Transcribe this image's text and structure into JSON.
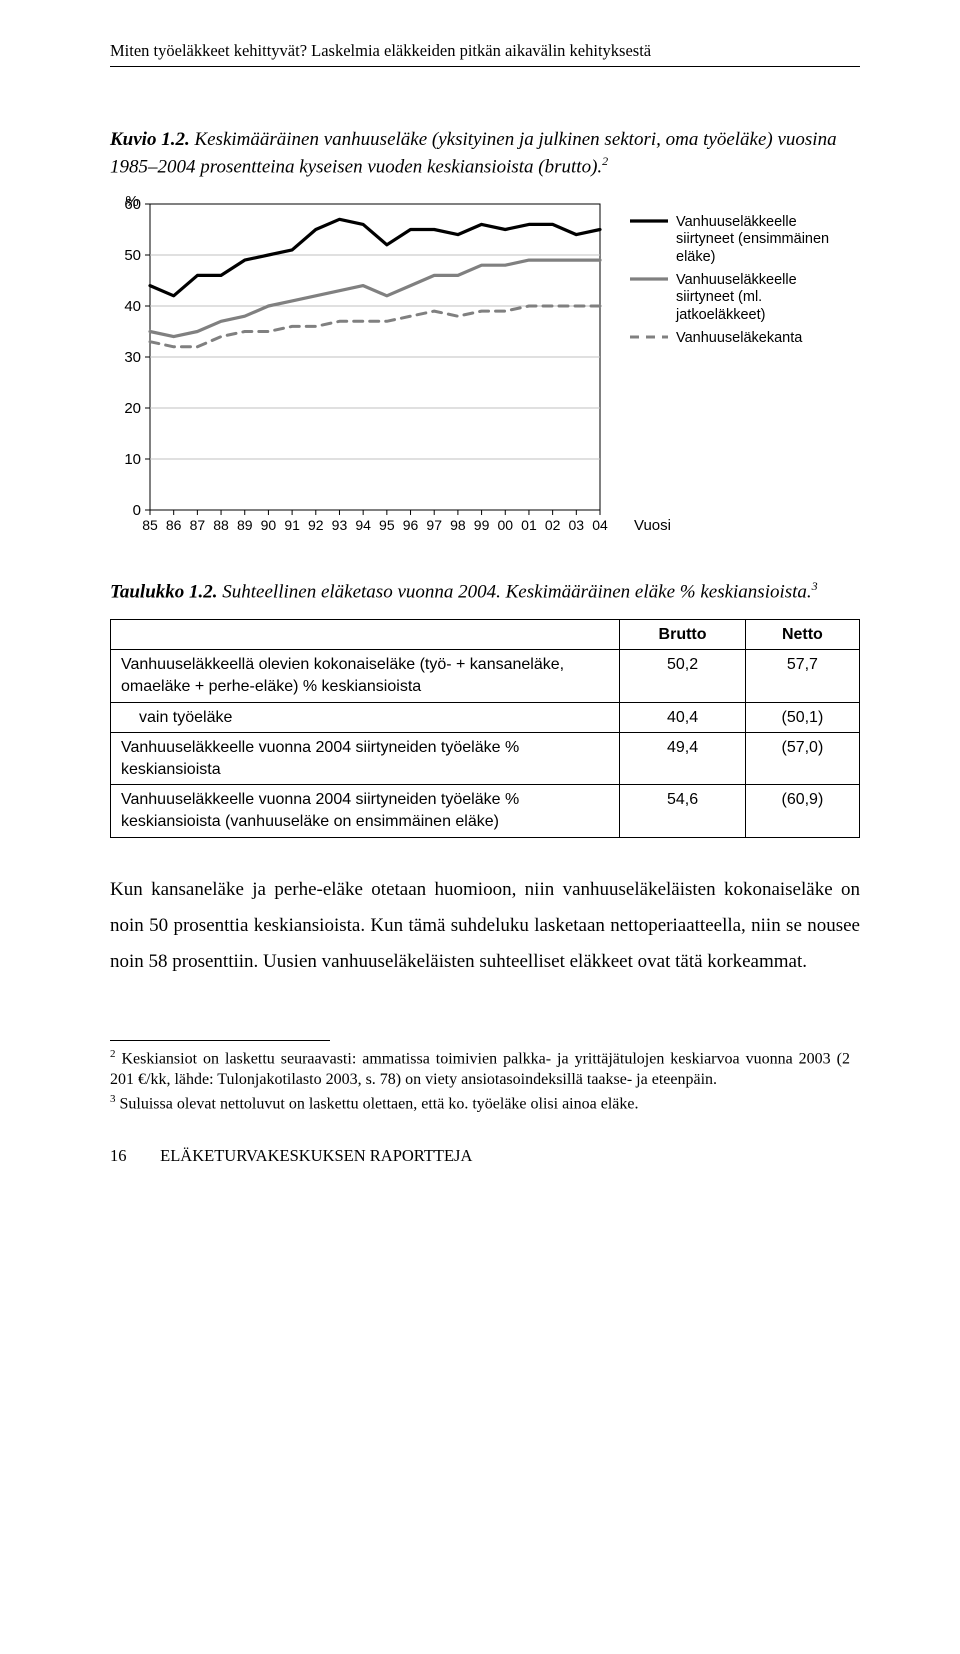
{
  "running_head": "Miten työeläkkeet kehittyvät? Laskelmia eläkkeiden pitkän aikavälin kehityksestä",
  "figure": {
    "label": "Kuvio 1.2.",
    "title": "Keskimääräinen vanhuuseläke (yksityinen ja julkinen sektori, oma työeläke) vuosina 1985–2004 prosentteina kyseisen vuoden keskiansioista (brutto).",
    "sup": "2"
  },
  "chart": {
    "type": "line",
    "y_unit": "%",
    "ylim": [
      0,
      60
    ],
    "ytick_step": 10,
    "x_labels": [
      "85",
      "86",
      "87",
      "88",
      "89",
      "90",
      "91",
      "92",
      "93",
      "94",
      "95",
      "96",
      "97",
      "98",
      "99",
      "00",
      "01",
      "02",
      "03",
      "04"
    ],
    "x_axis_label": "Vuosi",
    "background_color": "#ffffff",
    "axis_color": "#000000",
    "grid_color": "#c0c0c0",
    "label_fontsize": 15,
    "series": [
      {
        "name": "Vanhuuseläkkeelle siirtyneet (ensimmäinen eläke)",
        "color": "#000000",
        "width": 3.2,
        "dash": "",
        "values": [
          44,
          42,
          46,
          46,
          49,
          50,
          51,
          55,
          57,
          56,
          52,
          55,
          55,
          54,
          56,
          55,
          56,
          56,
          54,
          55
        ]
      },
      {
        "name": "Vanhuuseläkkeelle siirtyneet (ml. jatkoeläkkeet)",
        "color": "#808080",
        "width": 3.2,
        "dash": "",
        "values": [
          35,
          34,
          35,
          37,
          38,
          40,
          41,
          42,
          43,
          44,
          42,
          44,
          46,
          46,
          48,
          48,
          49,
          49,
          49,
          49
        ]
      },
      {
        "name": "Vanhuuseläkekanta",
        "color": "#808080",
        "width": 3.0,
        "dash": "9,7",
        "values": [
          33,
          32,
          32,
          34,
          35,
          35,
          36,
          36,
          37,
          37,
          37,
          38,
          39,
          38,
          39,
          39,
          40,
          40,
          40,
          40
        ]
      }
    ]
  },
  "table": {
    "label": "Taulukko 1.2.",
    "title": "Suhteellinen eläketaso vuonna 2004. Keskimääräinen eläke % keskiansioista.",
    "sup": "3",
    "columns": [
      "",
      "Brutto",
      "Netto"
    ],
    "rows": [
      {
        "label": "Vanhuuseläkkeellä olevien kokonaiseläke (työ- + kansaneläke, omaeläke + perhe-eläke) % keskiansioista",
        "brutto": "50,2",
        "netto": "57,7",
        "indent": false
      },
      {
        "label": "vain työeläke",
        "brutto": "40,4",
        "netto": "(50,1)",
        "indent": true
      },
      {
        "label": "Vanhuuseläkkeelle vuonna 2004 siirtyneiden työeläke % keskiansioista",
        "brutto": "49,4",
        "netto": "(57,0)",
        "indent": false
      },
      {
        "label": "Vanhuuseläkkeelle vuonna 2004 siirtyneiden työeläke % keskiansioista (vanhuuseläke on ensimmäinen eläke)",
        "brutto": "54,6",
        "netto": "(60,9)",
        "indent": false
      }
    ]
  },
  "body_text": "Kun kansaneläke ja perhe-eläke otetaan huomioon, niin vanhuuseläkeläisten kokonaiseläke on noin 50 prosenttia keskiansioista. Kun tämä suhdeluku lasketaan nettoperiaatteella, niin se nousee noin 58 prosenttiin. Uusien vanhuuseläkeläisten suhteelliset eläkkeet ovat tätä korkeammat.",
  "footnotes": {
    "fn2_num": "2",
    "fn2": "Keskiansiot on laskettu seuraavasti: ammatissa toimivien palkka- ja yrittäjätulojen keskiarvoa vuonna 2003 (2 201 €/kk, lähde: Tulonjakotilasto 2003, s. 78) on viety ansiotasoindeksillä taakse- ja eteenpäin.",
    "fn3_num": "3",
    "fn3": "Suluissa olevat nettoluvut on laskettu olettaen, että ko. työeläke olisi ainoa eläke."
  },
  "footer": {
    "page": "16",
    "text": "ELÄKETURVAKESKUKSEN RAPORTTEJA"
  }
}
